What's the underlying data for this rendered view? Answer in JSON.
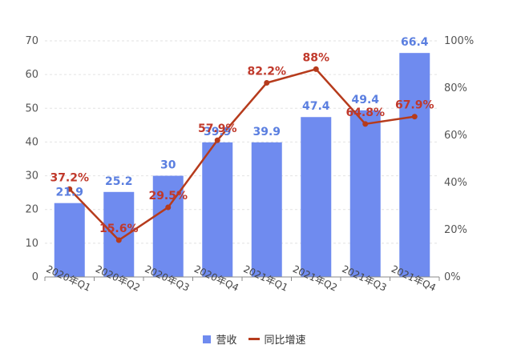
{
  "chart_data": {
    "type": "bar",
    "categories": [
      "2020年Q1",
      "2020年Q2",
      "2020年Q3",
      "2020年Q4",
      "2021年Q1",
      "2021年Q2",
      "2021年Q3",
      "2021年Q4"
    ],
    "series": [
      {
        "name": "营收",
        "type": "bar",
        "axis": "left",
        "color": "#6f8bef",
        "values": [
          21.9,
          25.2,
          30,
          39.9,
          39.9,
          47.4,
          49.4,
          66.4
        ],
        "labels": [
          "21.9",
          "25.2",
          "30",
          "39.9",
          "39.9",
          "47.4",
          "49.4",
          "66.4"
        ]
      },
      {
        "name": "同比增速",
        "type": "line",
        "axis": "right",
        "color": "#b63b1c",
        "values": [
          37.2,
          15.6,
          29.5,
          57.9,
          82.2,
          88,
          64.8,
          67.9
        ],
        "labels": [
          "37.2%",
          "15.6%",
          "29.5%",
          "57.9%",
          "82.2%",
          "88%",
          "64.8%",
          "67.9%"
        ]
      }
    ],
    "y_left": {
      "min": 0,
      "max": 70,
      "ticks": [
        "0",
        "10",
        "20",
        "30",
        "40",
        "50",
        "60",
        "70"
      ]
    },
    "y_right": {
      "min": 0,
      "max": 100,
      "ticks": [
        "0%",
        "20%",
        "40%",
        "60%",
        "80%",
        "100%"
      ]
    },
    "grid": true,
    "legend": "bottom"
  }
}
